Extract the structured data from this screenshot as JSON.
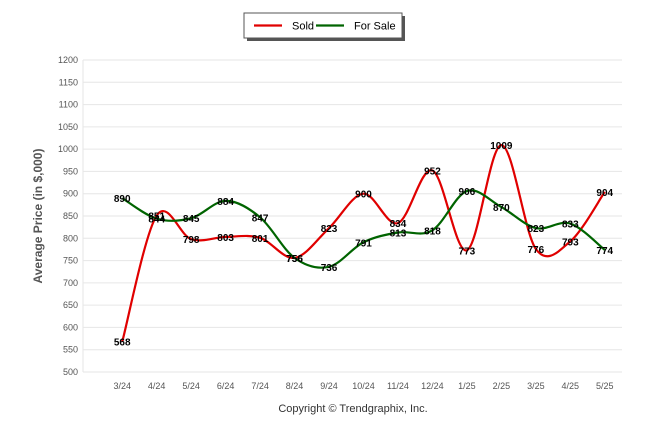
{
  "chart_data": {
    "type": "line",
    "ylabel": "Average Price (in $,000)",
    "xlabel": "",
    "ylim": [
      500,
      1200
    ],
    "yticks": [
      500,
      550,
      600,
      650,
      700,
      750,
      800,
      850,
      900,
      950,
      1000,
      1050,
      1100,
      1150,
      1200
    ],
    "categories": [
      "3/24",
      "4/24",
      "5/24",
      "6/24",
      "7/24",
      "8/24",
      "9/24",
      "10/24",
      "11/24",
      "12/24",
      "1/25",
      "2/25",
      "3/25",
      "4/25",
      "5/25"
    ],
    "series": [
      {
        "name": "Sold",
        "color": "#e00000",
        "values": [
          568,
          851,
          798,
          803,
          801,
          756,
          823,
          900,
          834,
          952,
          773,
          1009,
          776,
          793,
          904
        ]
      },
      {
        "name": "For Sale",
        "color": "#006400",
        "values": [
          890,
          844,
          845,
          884,
          847,
          756,
          736,
          791,
          813,
          818,
          906,
          870,
          823,
          833,
          774
        ]
      }
    ],
    "legend": {
      "placement": "top-center"
    },
    "grid": true
  },
  "footer": {
    "copyright": "Copyright © Trendgraphix, Inc."
  }
}
